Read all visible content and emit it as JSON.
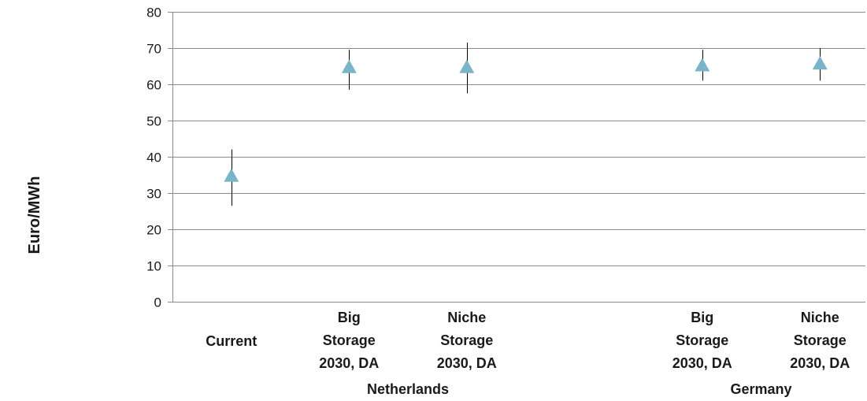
{
  "chart_data": {
    "type": "scatter",
    "marker": "triangle",
    "ylabel": "Euro/MWh",
    "ylim": [
      0,
      80
    ],
    "yticks": [
      0,
      10,
      20,
      30,
      40,
      50,
      60,
      70,
      80
    ],
    "grid": true,
    "colors": {
      "marker": "#7ab4c9",
      "error_bar": "#000000",
      "grid": "#8c8c8c",
      "axis": "#8c8c8c"
    },
    "categories": [
      {
        "lines": [
          "Current"
        ],
        "value": 34.5,
        "low": 26.5,
        "high": 42
      },
      {
        "lines": [
          "Big",
          "Storage",
          "2030, DA"
        ],
        "value": 64.5,
        "low": 58.5,
        "high": 69.5
      },
      {
        "lines": [
          "Niche",
          "Storage",
          "2030, DA"
        ],
        "value": 64.5,
        "low": 57.5,
        "high": 71.5
      },
      {
        "lines": [],
        "value": null,
        "low": null,
        "high": null
      },
      {
        "lines": [
          "Big",
          "Storage",
          "2030, DA"
        ],
        "value": 65,
        "low": 61,
        "high": 69.5
      },
      {
        "lines": [
          "Niche",
          "Storage",
          "2030, DA"
        ],
        "value": 65.5,
        "low": 61,
        "high": 70
      }
    ],
    "groups": [
      {
        "label": "Netherlands",
        "start": 1,
        "end": 2
      },
      {
        "label": "Germany",
        "start": 4,
        "end": 5
      }
    ]
  }
}
